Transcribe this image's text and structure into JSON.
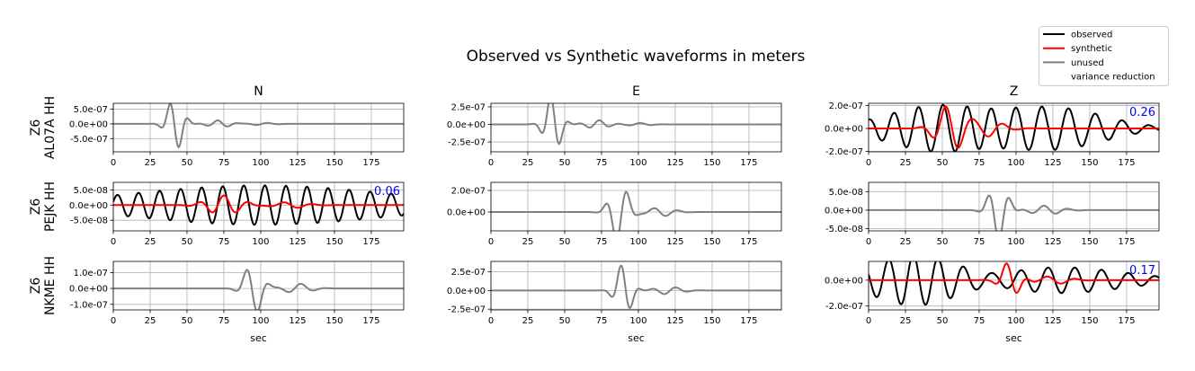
{
  "chart_data": {
    "type": "line",
    "title": "Observed vs Synthetic waveforms in meters",
    "xlabel": "sec",
    "xlim": [
      0,
      197
    ],
    "xticks": [
      0,
      25,
      50,
      75,
      100,
      125,
      150,
      175
    ],
    "columns": [
      "N",
      "E",
      "Z"
    ],
    "rows": [
      {
        "network": "Z6",
        "station": "AL07A HH"
      },
      {
        "network": "Z6",
        "station": "PEJK HH"
      },
      {
        "network": "Z6",
        "station": "NKME HH"
      }
    ],
    "legend": {
      "placement": "top-right",
      "entries": [
        {
          "label": "observed",
          "color": "#000000"
        },
        {
          "label": "synthetic",
          "color": "#ff0000"
        },
        {
          "label": "unused",
          "color": "#808080"
        },
        {
          "label": "variance reduction",
          "color": "#0000ff"
        }
      ]
    },
    "grid": true,
    "panels": [
      {
        "row": 0,
        "col": 0,
        "used": false,
        "ylim": [
          -9.5e-07,
          7e-07
        ],
        "yticks": [
          5e-07,
          0,
          -5e-07
        ],
        "yticklabels": [
          "5.0e-07",
          "0.0e+00",
          "-5.0e-07"
        ],
        "variance_reduction": "",
        "seed": 1,
        "packets": [
          {
            "t": 42,
            "w": 7,
            "f": 0.075,
            "a": 9e-07
          },
          {
            "t": 72,
            "w": 10,
            "f": 0.07,
            "a": 1.2e-07
          },
          {
            "t": 100,
            "w": 10,
            "f": 0.06,
            "a": 4e-08
          }
        ]
      },
      {
        "row": 0,
        "col": 1,
        "used": false,
        "ylim": [
          -3.9e-07,
          3e-07
        ],
        "yticks": [
          2.5e-07,
          0,
          -2.5e-07
        ],
        "yticklabels": [
          "2.5e-07",
          "0.0e+00",
          "-2.5e-07"
        ],
        "variance_reduction": "",
        "seed": 2,
        "packets": [
          {
            "t": 42,
            "w": 7,
            "f": 0.075,
            "a": 4.2e-07
          },
          {
            "t": 72,
            "w": 10,
            "f": 0.07,
            "a": 6e-08
          },
          {
            "t": 100,
            "w": 10,
            "f": 0.06,
            "a": 2e-08
          }
        ]
      },
      {
        "row": 0,
        "col": 2,
        "used": true,
        "ylim": [
          -2.05e-07,
          2.2e-07
        ],
        "yticks": [
          2e-07,
          0,
          -2e-07
        ],
        "yticklabels": [
          "2.0e-07",
          "0.0e+00",
          "-2.0e-07"
        ],
        "variance_reduction": "0.26",
        "seed": 3,
        "obs_packets": [
          {
            "t": 50,
            "w": 50,
            "f": 0.06,
            "a": 2.1e-07
          },
          {
            "t": 130,
            "w": 45,
            "f": 0.055,
            "a": 1.7e-07
          }
        ],
        "syn_packets": [
          {
            "t": 55,
            "w": 12,
            "f": 0.055,
            "a": 2e-07
          },
          {
            "t": 80,
            "w": 15,
            "f": 0.05,
            "a": 7e-08
          }
        ]
      },
      {
        "row": 1,
        "col": 0,
        "used": true,
        "ylim": [
          -8.5e-08,
          7.5e-08
        ],
        "yticks": [
          5e-08,
          0,
          -5e-08
        ],
        "yticklabels": [
          "5.0e-08",
          "0.0e+00",
          "-5.0e-08"
        ],
        "variance_reduction": "0.06",
        "seed": 4,
        "obs_packets": [
          {
            "t": 100,
            "w": 120,
            "f": 0.07,
            "a": 6.5e-08
          }
        ],
        "syn_packets": [
          {
            "t": 75,
            "w": 15,
            "f": 0.06,
            "a": 3.2e-08
          },
          {
            "t": 120,
            "w": 15,
            "f": 0.05,
            "a": 1e-08
          }
        ]
      },
      {
        "row": 1,
        "col": 1,
        "used": false,
        "ylim": [
          -1.75e-07,
          2.75e-07
        ],
        "yticks": [
          2e-07,
          0
        ],
        "yticklabels": [
          "2.0e-07",
          "0.0e+00"
        ],
        "variance_reduction": "",
        "seed": 5,
        "packets": [
          {
            "t": 87,
            "w": 8,
            "f": 0.065,
            "a": 2.8e-07
          },
          {
            "t": 115,
            "w": 12,
            "f": 0.06,
            "a": 4e-08
          }
        ]
      },
      {
        "row": 1,
        "col": 2,
        "used": false,
        "ylim": [
          -5.6e-08,
          7.5e-08
        ],
        "yticks": [
          5e-08,
          0,
          -5e-08
        ],
        "yticklabels": [
          "5.0e-08",
          "0.0e+00",
          "-5.0e-08"
        ],
        "variance_reduction": "",
        "seed": 6,
        "packets": [
          {
            "t": 88,
            "w": 8,
            "f": 0.065,
            "a": 8e-08
          },
          {
            "t": 120,
            "w": 14,
            "f": 0.06,
            "a": 1.2e-08
          }
        ]
      },
      {
        "row": 2,
        "col": 0,
        "used": false,
        "ylim": [
          -1.35e-07,
          1.7e-07
        ],
        "yticks": [
          1e-07,
          0,
          -1e-07
        ],
        "yticklabels": [
          "1.0e-07",
          "0.0e+00",
          "-1.0e-07"
        ],
        "variance_reduction": "",
        "seed": 7,
        "packets": [
          {
            "t": 95,
            "w": 8,
            "f": 0.06,
            "a": 1.65e-07
          },
          {
            "t": 125,
            "w": 12,
            "f": 0.055,
            "a": 3e-08
          }
        ]
      },
      {
        "row": 2,
        "col": 1,
        "used": false,
        "ylim": [
          -2.6e-07,
          3.9e-07
        ],
        "yticks": [
          2.5e-07,
          0,
          -2.5e-07
        ],
        "yticklabels": [
          "2.5e-07",
          "0.0e+00",
          "-2.5e-07"
        ],
        "variance_reduction": "",
        "seed": 8,
        "packets": [
          {
            "t": 90,
            "w": 7,
            "f": 0.07,
            "a": 3.6e-07
          },
          {
            "t": 120,
            "w": 12,
            "f": 0.06,
            "a": 5e-08
          }
        ]
      },
      {
        "row": 2,
        "col": 2,
        "used": true,
        "ylim": [
          -2.3e-07,
          1.45e-07
        ],
        "yticks": [
          0,
          -2e-07
        ],
        "yticklabels": [
          "0.0e+00",
          "-2.0e-07"
        ],
        "variance_reduction": "0.17",
        "seed": 9,
        "obs_packets": [
          {
            "t": 30,
            "w": 40,
            "f": 0.06,
            "a": 1.9e-07
          },
          {
            "t": 130,
            "w": 60,
            "f": 0.055,
            "a": 1e-07
          }
        ],
        "syn_packets": [
          {
            "t": 96,
            "w": 8,
            "f": 0.06,
            "a": 1.45e-07
          },
          {
            "t": 125,
            "w": 15,
            "f": 0.05,
            "a": 3e-08
          }
        ]
      }
    ]
  }
}
